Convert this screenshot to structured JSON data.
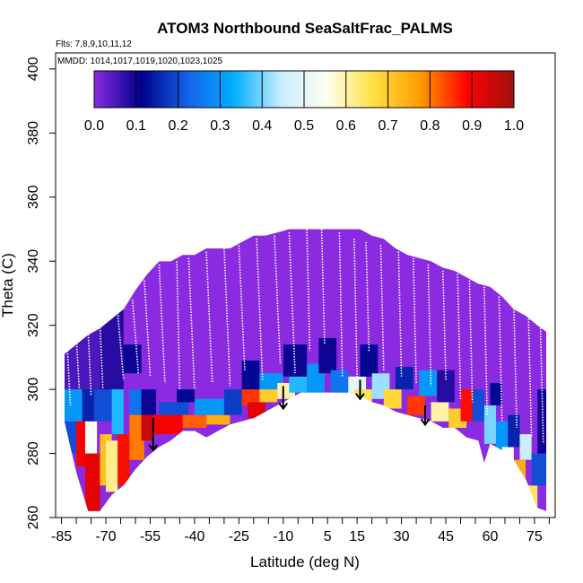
{
  "chart_data": {
    "type": "heatmap",
    "title": "ATOM3 Northbound SeaSaltFrac_PALMS",
    "subtitle_flights": "Flts: 7,8,9,10,11,12",
    "subtitle_dates": "MMDD: 1014,1017,1019,1020,1023,1025",
    "xlabel": "Latitude (deg N)",
    "ylabel": "Theta (C)",
    "xlim": [
      -87,
      82
    ],
    "ylim": [
      260,
      405
    ],
    "x_ticks": [
      -85,
      -70,
      -55,
      -40,
      -25,
      -10,
      5,
      15,
      30,
      45,
      60,
      75
    ],
    "x_tick_labels": [
      "-85",
      "-70",
      "-55",
      "-40",
      "-25",
      "-10",
      "5",
      "15",
      "30",
      "45",
      "60",
      "75"
    ],
    "y_ticks": [
      260,
      280,
      300,
      320,
      340,
      360,
      380,
      400
    ],
    "y_tick_labels": [
      "260",
      "280",
      "300",
      "320",
      "340",
      "360",
      "380",
      "400"
    ],
    "colorbar": {
      "range": [
        0,
        1
      ],
      "ticks": [
        0.0,
        0.1,
        0.2,
        0.3,
        0.4,
        0.5,
        0.6,
        0.7,
        0.8,
        0.9,
        1.0
      ],
      "tick_labels": [
        "0.0",
        "0.1",
        "0.2",
        "0.3",
        "0.4",
        "0.5",
        "0.6",
        "0.7",
        "0.8",
        "0.9",
        "1.0"
      ],
      "stops": [
        "#8a2be2",
        "#00008b",
        "#1560e8",
        "#00b0ff",
        "#c8ecff",
        "#fffff0",
        "#ffe040",
        "#ff9a00",
        "#ff0000",
        "#a01010"
      ]
    },
    "upper_boundary": [
      [
        -84,
        311
      ],
      [
        -80,
        314
      ],
      [
        -76,
        317
      ],
      [
        -72,
        319
      ],
      [
        -68,
        322
      ],
      [
        -64,
        325
      ],
      [
        -60,
        331
      ],
      [
        -56,
        336
      ],
      [
        -52,
        340
      ],
      [
        -48,
        340
      ],
      [
        -44,
        342
      ],
      [
        -40,
        342
      ],
      [
        -36,
        344
      ],
      [
        -32,
        344
      ],
      [
        -28,
        344
      ],
      [
        -24,
        346
      ],
      [
        -20,
        348
      ],
      [
        -16,
        348
      ],
      [
        -12,
        349
      ],
      [
        -8,
        350
      ],
      [
        -4,
        350
      ],
      [
        0,
        350
      ],
      [
        4,
        350
      ],
      [
        8,
        350
      ],
      [
        12,
        350
      ],
      [
        16,
        350
      ],
      [
        20,
        348
      ],
      [
        24,
        347
      ],
      [
        28,
        344
      ],
      [
        32,
        342
      ],
      [
        36,
        341
      ],
      [
        40,
        340
      ],
      [
        44,
        338
      ],
      [
        48,
        337
      ],
      [
        52,
        335
      ],
      [
        56,
        333
      ],
      [
        60,
        332
      ],
      [
        64,
        329
      ],
      [
        68,
        325
      ],
      [
        72,
        323
      ],
      [
        76,
        320
      ],
      [
        79,
        318
      ]
    ],
    "lower_boundary": [
      [
        -84,
        290
      ],
      [
        -80,
        274
      ],
      [
        -76,
        262
      ],
      [
        -72,
        262
      ],
      [
        -68,
        267
      ],
      [
        -64,
        270
      ],
      [
        -60,
        275
      ],
      [
        -56,
        279
      ],
      [
        -52,
        282
      ],
      [
        -48,
        284
      ],
      [
        -44,
        287
      ],
      [
        -40,
        287
      ],
      [
        -36,
        285
      ],
      [
        -32,
        287
      ],
      [
        -28,
        289
      ],
      [
        -24,
        290
      ],
      [
        -20,
        291
      ],
      [
        -16,
        293
      ],
      [
        -12,
        295
      ],
      [
        -8,
        297
      ],
      [
        -4,
        299
      ],
      [
        0,
        299
      ],
      [
        4,
        299
      ],
      [
        8,
        299
      ],
      [
        12,
        299
      ],
      [
        16,
        298
      ],
      [
        20,
        296
      ],
      [
        24,
        295
      ],
      [
        28,
        293
      ],
      [
        32,
        292
      ],
      [
        36,
        291
      ],
      [
        40,
        290
      ],
      [
        44,
        288
      ],
      [
        48,
        288
      ],
      [
        52,
        285
      ],
      [
        56,
        284
      ],
      [
        58,
        277
      ],
      [
        60,
        283
      ],
      [
        64,
        281
      ],
      [
        68,
        278
      ],
      [
        72,
        272
      ],
      [
        76,
        263
      ],
      [
        79,
        262
      ]
    ],
    "cells": [
      {
        "x0": -84,
        "x1": -72,
        "y0": 300,
        "y1": 320,
        "v": 0.05
      },
      {
        "x0": -84,
        "x1": -78,
        "y0": 290,
        "y1": 300,
        "v": 0.3
      },
      {
        "x0": -78,
        "x1": -74,
        "y0": 290,
        "y1": 300,
        "v": 0.15
      },
      {
        "x0": -84,
        "x1": -80,
        "y0": 280,
        "y1": 290,
        "v": 0.2
      },
      {
        "x0": -80,
        "x1": -77,
        "y0": 276,
        "y1": 290,
        "v": 0.9
      },
      {
        "x0": -77,
        "x1": -72,
        "y0": 262,
        "y1": 280,
        "v": 0.92
      },
      {
        "x0": -77,
        "x1": -73,
        "y0": 280,
        "y1": 290,
        "v": 0.55
      },
      {
        "x0": -74,
        "x1": -68,
        "y0": 290,
        "y1": 300,
        "v": 0.2
      },
      {
        "x0": -72,
        "x1": -64,
        "y0": 300,
        "y1": 325,
        "v": 0.08
      },
      {
        "x0": -72,
        "x1": -68,
        "y0": 270,
        "y1": 286,
        "v": 0.72
      },
      {
        "x0": -70,
        "x1": -66,
        "y0": 268,
        "y1": 284,
        "v": 0.62
      },
      {
        "x0": -68,
        "x1": -64,
        "y0": 286,
        "y1": 300,
        "v": 0.35
      },
      {
        "x0": -66,
        "x1": -62,
        "y0": 270,
        "y1": 286,
        "v": 0.88
      },
      {
        "x0": -64,
        "x1": -58,
        "y0": 305,
        "y1": 314,
        "v": 0.1
      },
      {
        "x0": -62,
        "x1": -58,
        "y0": 292,
        "y1": 300,
        "v": 0.25
      },
      {
        "x0": -62,
        "x1": -57,
        "y0": 278,
        "y1": 292,
        "v": 0.8
      },
      {
        "x0": -58,
        "x1": -53,
        "y0": 292,
        "y1": 300,
        "v": 0.1
      },
      {
        "x0": -58,
        "x1": -54,
        "y0": 284,
        "y1": 292,
        "v": 0.95
      },
      {
        "x0": -54,
        "x1": -44,
        "y0": 286,
        "y1": 292,
        "v": 0.9
      },
      {
        "x0": -52,
        "x1": -42,
        "y0": 292,
        "y1": 296,
        "v": 0.2
      },
      {
        "x0": -46,
        "x1": -40,
        "y0": 296,
        "y1": 300,
        "v": 0.12
      },
      {
        "x0": -44,
        "x1": -36,
        "y0": 288,
        "y1": 292,
        "v": 0.82
      },
      {
        "x0": -40,
        "x1": -30,
        "y0": 292,
        "y1": 297,
        "v": 0.3
      },
      {
        "x0": -36,
        "x1": -28,
        "y0": 289,
        "y1": 292,
        "v": 0.75
      },
      {
        "x0": -30,
        "x1": -24,
        "y0": 292,
        "y1": 300,
        "v": 0.18
      },
      {
        "x0": -24,
        "x1": -18,
        "y0": 295,
        "y1": 300,
        "v": 0.85
      },
      {
        "x0": -24,
        "x1": -18,
        "y0": 300,
        "y1": 309,
        "v": 0.12
      },
      {
        "x0": -22,
        "x1": -16,
        "y0": 291,
        "y1": 296,
        "v": 0.92
      },
      {
        "x0": -18,
        "x1": -12,
        "y0": 296,
        "y1": 300,
        "v": 0.7
      },
      {
        "x0": -18,
        "x1": -10,
        "y0": 300,
        "y1": 305,
        "v": 0.3
      },
      {
        "x0": -12,
        "x1": -6,
        "y0": 297,
        "y1": 302,
        "v": 0.6
      },
      {
        "x0": -8,
        "x1": -2,
        "y0": 299,
        "y1": 304,
        "v": 0.35
      },
      {
        "x0": -10,
        "x1": -2,
        "y0": 304,
        "y1": 314,
        "v": 0.1
      },
      {
        "x0": -2,
        "x1": 4,
        "y0": 299,
        "y1": 308,
        "v": 0.3
      },
      {
        "x0": 2,
        "x1": 8,
        "y0": 305,
        "y1": 316,
        "v": 0.1
      },
      {
        "x0": 6,
        "x1": 12,
        "y0": 299,
        "y1": 306,
        "v": 0.25
      },
      {
        "x0": 12,
        "x1": 18,
        "y0": 298,
        "y1": 304,
        "v": 0.5
      },
      {
        "x0": 14,
        "x1": 20,
        "y0": 296,
        "y1": 300,
        "v": 0.65
      },
      {
        "x0": 16,
        "x1": 22,
        "y0": 304,
        "y1": 314,
        "v": 0.12
      },
      {
        "x0": 20,
        "x1": 26,
        "y0": 297,
        "y1": 305,
        "v": 0.42
      },
      {
        "x0": 24,
        "x1": 30,
        "y0": 294,
        "y1": 300,
        "v": 0.68
      },
      {
        "x0": 28,
        "x1": 34,
        "y0": 300,
        "y1": 307,
        "v": 0.15
      },
      {
        "x0": 32,
        "x1": 38,
        "y0": 292,
        "y1": 298,
        "v": 0.85
      },
      {
        "x0": 36,
        "x1": 42,
        "y0": 298,
        "y1": 306,
        "v": 0.3
      },
      {
        "x0": 40,
        "x1": 46,
        "y0": 290,
        "y1": 296,
        "v": 0.6
      },
      {
        "x0": 42,
        "x1": 48,
        "y0": 296,
        "y1": 306,
        "v": 0.08
      },
      {
        "x0": 46,
        "x1": 52,
        "y0": 288,
        "y1": 294,
        "v": 0.7
      },
      {
        "x0": 50,
        "x1": 55,
        "y0": 290,
        "y1": 300,
        "v": 0.88
      },
      {
        "x0": 54,
        "x1": 58,
        "y0": 290,
        "y1": 300,
        "v": 0.2
      },
      {
        "x0": 58,
        "x1": 62,
        "y0": 283,
        "y1": 295,
        "v": 0.4
      },
      {
        "x0": 60,
        "x1": 64,
        "y0": 295,
        "y1": 302,
        "v": 0.12
      },
      {
        "x0": 62,
        "x1": 66,
        "y0": 281,
        "y1": 290,
        "v": 0.3
      },
      {
        "x0": 64,
        "x1": 68,
        "y0": 272,
        "y1": 282,
        "v": 0.55
      },
      {
        "x0": 66,
        "x1": 70,
        "y0": 282,
        "y1": 292,
        "v": 0.15
      },
      {
        "x0": 68,
        "x1": 72,
        "y0": 268,
        "y1": 278,
        "v": 0.75
      },
      {
        "x0": 70,
        "x1": 74,
        "y0": 278,
        "y1": 286,
        "v": 0.45
      },
      {
        "x0": 72,
        "x1": 76,
        "y0": 262,
        "y1": 270,
        "v": 0.65
      },
      {
        "x0": 74,
        "x1": 79,
        "y0": 270,
        "y1": 280,
        "v": 0.2
      },
      {
        "x0": 76,
        "x1": 79,
        "y0": 280,
        "y1": 300,
        "v": 0.1
      }
    ],
    "trajectories": [
      [
        [
          -83,
          312
        ],
        [
          -82,
          295
        ]
      ],
      [
        [
          -80,
          316
        ],
        [
          -79,
          300
        ]
      ],
      [
        [
          -76,
          318
        ],
        [
          -75,
          298
        ]
      ],
      [
        [
          -72,
          321
        ],
        [
          -71,
          300
        ]
      ],
      [
        [
          -66,
          324
        ],
        [
          -64,
          303
        ]
      ],
      [
        [
          -61,
          328
        ],
        [
          -59,
          305
        ]
      ],
      [
        [
          -57,
          334
        ],
        [
          -55,
          304
        ]
      ],
      [
        [
          -52,
          339
        ],
        [
          -50,
          302
        ]
      ],
      [
        [
          -46,
          340
        ],
        [
          -45,
          300
        ]
      ],
      [
        [
          -42,
          341
        ],
        [
          -40,
          300
        ]
      ],
      [
        [
          -36,
          343
        ],
        [
          -34,
          302
        ]
      ],
      [
        [
          -30,
          344
        ],
        [
          -28,
          301
        ]
      ],
      [
        [
          -25,
          345
        ],
        [
          -23,
          306
        ]
      ],
      [
        [
          -19,
          347
        ],
        [
          -17,
          303
        ]
      ],
      [
        [
          -13,
          348
        ],
        [
          -11,
          308
        ]
      ],
      [
        [
          -8,
          349
        ],
        [
          -6,
          305
        ]
      ],
      [
        [
          -2,
          350
        ],
        [
          -1,
          312
        ]
      ],
      [
        [
          3,
          350
        ],
        [
          4,
          314
        ]
      ],
      [
        [
          9,
          349
        ],
        [
          10,
          304
        ]
      ],
      [
        [
          14,
          347
        ],
        [
          15,
          303
        ]
      ],
      [
        [
          18,
          346
        ],
        [
          19,
          312
        ]
      ],
      [
        [
          23,
          345
        ],
        [
          24,
          306
        ]
      ],
      [
        [
          29,
          343
        ],
        [
          30,
          304
        ]
      ],
      [
        [
          34,
          341
        ],
        [
          35,
          302
        ]
      ],
      [
        [
          39,
          339
        ],
        [
          40,
          301
        ]
      ],
      [
        [
          44,
          337
        ],
        [
          45,
          303
        ]
      ],
      [
        [
          49,
          336
        ],
        [
          50,
          297
        ]
      ],
      [
        [
          53,
          334
        ],
        [
          54,
          296
        ]
      ],
      [
        [
          58,
          332
        ],
        [
          59,
          292
        ]
      ],
      [
        [
          63,
          329
        ],
        [
          64,
          290
        ]
      ],
      [
        [
          68,
          326
        ],
        [
          69,
          288
        ]
      ],
      [
        [
          73,
          322
        ],
        [
          74,
          285
        ]
      ],
      [
        [
          77,
          320
        ],
        [
          78,
          283
        ]
      ]
    ],
    "arrows": [
      {
        "lat": -54,
        "theta_top": 291,
        "theta_bottom": 281
      },
      {
        "lat": -10,
        "theta_top": 301,
        "theta_bottom": 294
      },
      {
        "lat": 16,
        "theta_top": 303,
        "theta_bottom": 297
      },
      {
        "lat": 38,
        "theta_top": 295,
        "theta_bottom": 289
      }
    ]
  }
}
